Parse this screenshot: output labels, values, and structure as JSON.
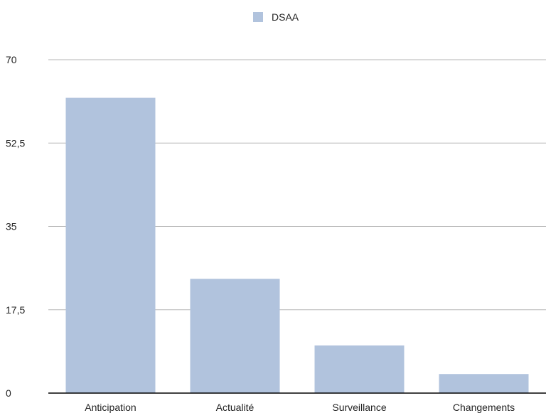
{
  "chart_data": {
    "type": "bar",
    "categories": [
      "Anticipation",
      "Actualité",
      "Surveillance",
      "Changements"
    ],
    "series": [
      {
        "name": "DSAA",
        "values": [
          62,
          24,
          10,
          4
        ]
      }
    ],
    "ylim": [
      0,
      70
    ],
    "yticks": [
      0,
      17.5,
      35,
      52.5,
      70
    ],
    "ytick_labels": [
      "0",
      "17,5",
      "35",
      "52,5",
      "70"
    ],
    "grid": true,
    "legend_position": "top-center",
    "colors": {
      "bar": "#b1c3dd",
      "grid": "#b5b5b5",
      "axis": "#000000",
      "text": "#222222"
    }
  }
}
